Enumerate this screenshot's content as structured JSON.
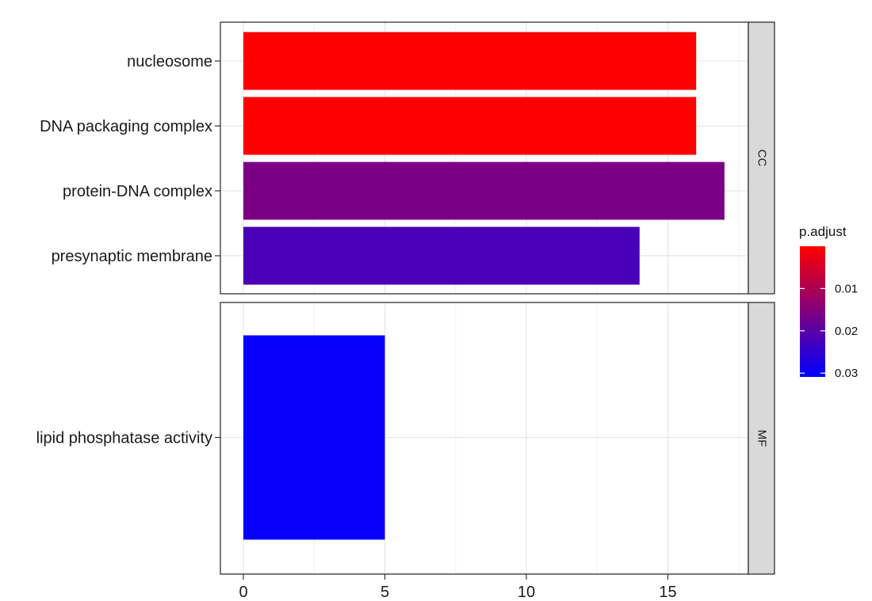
{
  "chart_data": {
    "type": "bar",
    "orientation": "horizontal",
    "grid": true,
    "xlim": [
      0,
      18
    ],
    "x_ticks": [
      0,
      5,
      10,
      15
    ],
    "x_tick_labels": [
      "0",
      "5",
      "10",
      "15"
    ],
    "panels": [
      {
        "strip": "CC",
        "categories": [
          "nucleosome",
          "DNA packaging complex",
          "protein-DNA complex",
          "presynaptic membrane"
        ],
        "values": [
          16,
          16,
          17,
          14
        ],
        "p_adjust": [
          0.0,
          0.0,
          0.016,
          0.022
        ]
      },
      {
        "strip": "MF",
        "categories": [
          "lipid phosphatase activity"
        ],
        "values": [
          5
        ],
        "p_adjust": [
          0.03
        ]
      }
    ],
    "legend": {
      "title": "p.adjust",
      "placement": "right",
      "ticks": [
        0.01,
        0.02,
        0.03
      ],
      "tick_labels": [
        "0.01",
        "0.02",
        "0.03"
      ],
      "range": [
        0.0,
        0.0309
      ],
      "color_low": "#ff0000",
      "color_high": "#0000ff"
    }
  }
}
